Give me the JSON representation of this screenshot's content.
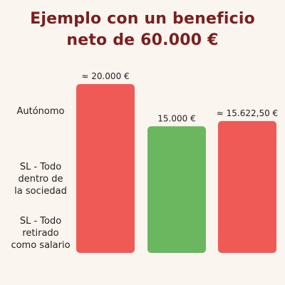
{
  "colors": {
    "background": "#fbf5ef",
    "title": "#7a1f1f",
    "bar_red": "#ef5a57",
    "bar_green": "#6ab760",
    "text": "#222222"
  },
  "chart_data": {
    "type": "bar",
    "title": "Ejemplo con un beneficio neto de 60.000 €",
    "title_lines": [
      "Ejemplo con un beneficio",
      "neto de 60.000 €"
    ],
    "categories": [
      "Autónomo",
      "SL - Todo dentro de la sociedad",
      "SL - Todo retirado como salario"
    ],
    "category_label_lines": [
      "Autónomo",
      "SL - Todo\ndentro de\nla sociedad",
      "SL - Todo\nretirado\ncomo salario"
    ],
    "values": [
      20000,
      15000,
      15622.5
    ],
    "data_labels": [
      "≈ 20.000 €",
      "15.000 €",
      "≈ 15.622,50 €"
    ],
    "bar_colors": [
      "#ef5a57",
      "#6ab760",
      "#ef5a57"
    ],
    "ylim": [
      0,
      20000
    ],
    "grid": false,
    "legend": "none",
    "xlabel": "",
    "ylabel": ""
  }
}
